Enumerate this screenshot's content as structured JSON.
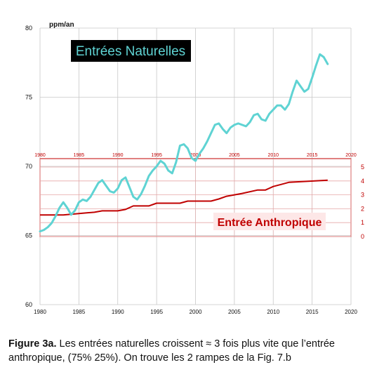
{
  "chart_data": [
    {
      "type": "line",
      "title": "Entrées Naturelles",
      "ylabel": "ppm/an",
      "xlim": [
        1980,
        2020
      ],
      "ylim": [
        60,
        80
      ],
      "x_ticks": [
        1980,
        1985,
        1990,
        1995,
        2000,
        2005,
        2010,
        2015,
        2020
      ],
      "y_ticks": [
        60,
        65,
        70,
        75,
        80
      ],
      "grid": true,
      "series": [
        {
          "name": "Entrées Naturelles",
          "color": "#5fd3d3",
          "x": [
            1980,
            1980.5,
            1981,
            1981.5,
            1982,
            1982.5,
            1983,
            1983.5,
            1984,
            1984.5,
            1985,
            1985.5,
            1986,
            1986.5,
            1987,
            1987.5,
            1988,
            1988.5,
            1989,
            1989.5,
            1990,
            1990.5,
            1991,
            1991.5,
            1992,
            1992.5,
            1993,
            1993.5,
            1994,
            1994.5,
            1995,
            1995.5,
            1996,
            1996.5,
            1997,
            1997.5,
            1998,
            1998.5,
            1999,
            1999.5,
            2000,
            2000.5,
            2001,
            2001.5,
            2002,
            2002.5,
            2003,
            2003.5,
            2004,
            2004.5,
            2005,
            2005.5,
            2006,
            2006.5,
            2007,
            2007.5,
            2008,
            2008.5,
            2009,
            2009.5,
            2010,
            2010.5,
            2011,
            2011.5,
            2012,
            2012.5,
            2013,
            2013.5,
            2014,
            2014.5,
            2015,
            2015.5,
            2016,
            2016.5,
            2017
          ],
          "values": [
            65.3,
            65.4,
            65.6,
            65.9,
            66.4,
            67.0,
            67.4,
            67.0,
            66.5,
            66.8,
            67.4,
            67.6,
            67.5,
            67.8,
            68.3,
            68.8,
            69.0,
            68.6,
            68.2,
            68.1,
            68.4,
            69.0,
            69.2,
            68.5,
            67.8,
            67.6,
            68.0,
            68.6,
            69.3,
            69.7,
            70.0,
            70.4,
            70.2,
            69.7,
            69.5,
            70.3,
            71.5,
            71.6,
            71.3,
            70.6,
            70.4,
            70.9,
            71.3,
            71.8,
            72.4,
            73.0,
            73.1,
            72.7,
            72.4,
            72.8,
            73.0,
            73.1,
            73.0,
            72.9,
            73.2,
            73.7,
            73.8,
            73.4,
            73.3,
            73.8,
            74.1,
            74.4,
            74.4,
            74.1,
            74.5,
            75.4,
            76.2,
            75.8,
            75.4,
            75.6,
            76.4,
            77.3,
            78.1,
            77.9,
            77.4
          ]
        }
      ]
    },
    {
      "type": "line",
      "title": "Entrée Anthropique",
      "xlim": [
        1980,
        2020
      ],
      "ylim": [
        0,
        5
      ],
      "x_ticks": [
        1980,
        1985,
        1990,
        1995,
        2000,
        2005,
        2010,
        2015,
        2020
      ],
      "y_ticks": [
        0,
        1,
        2,
        3,
        4,
        5
      ],
      "grid": true,
      "series": [
        {
          "name": "Entrée Anthropique",
          "color": "#c00000",
          "x": [
            1980,
            1983,
            1984,
            1985,
            1986,
            1987,
            1988,
            1990,
            1991,
            1992,
            1993,
            1994,
            1995,
            1998,
            1999,
            2002,
            2003,
            2004,
            2005,
            2006,
            2008,
            2009,
            2010,
            2011,
            2012,
            2017
          ],
          "values": [
            1.55,
            1.55,
            1.6,
            1.65,
            1.7,
            1.75,
            1.85,
            1.85,
            1.95,
            2.2,
            2.2,
            2.2,
            2.4,
            2.4,
            2.55,
            2.55,
            2.7,
            2.9,
            3.0,
            3.1,
            3.35,
            3.35,
            3.6,
            3.75,
            3.9,
            4.05
          ]
        }
      ]
    }
  ],
  "caption": {
    "lead": "Figure 3a.",
    "text": " Les entrées naturelles croissent ≈ 3 fois plus vite que l’entrée anthropique, (75% 25%). On trouve les 2 rampes de la Fig. 7.b"
  },
  "colors": {
    "main_grid": "#c8c8c8",
    "inset_grid": "#e6a8a8",
    "inset_axis_text": "#c00000",
    "inset_label_bg": "#fde7e7",
    "title_bg": "#000000"
  }
}
